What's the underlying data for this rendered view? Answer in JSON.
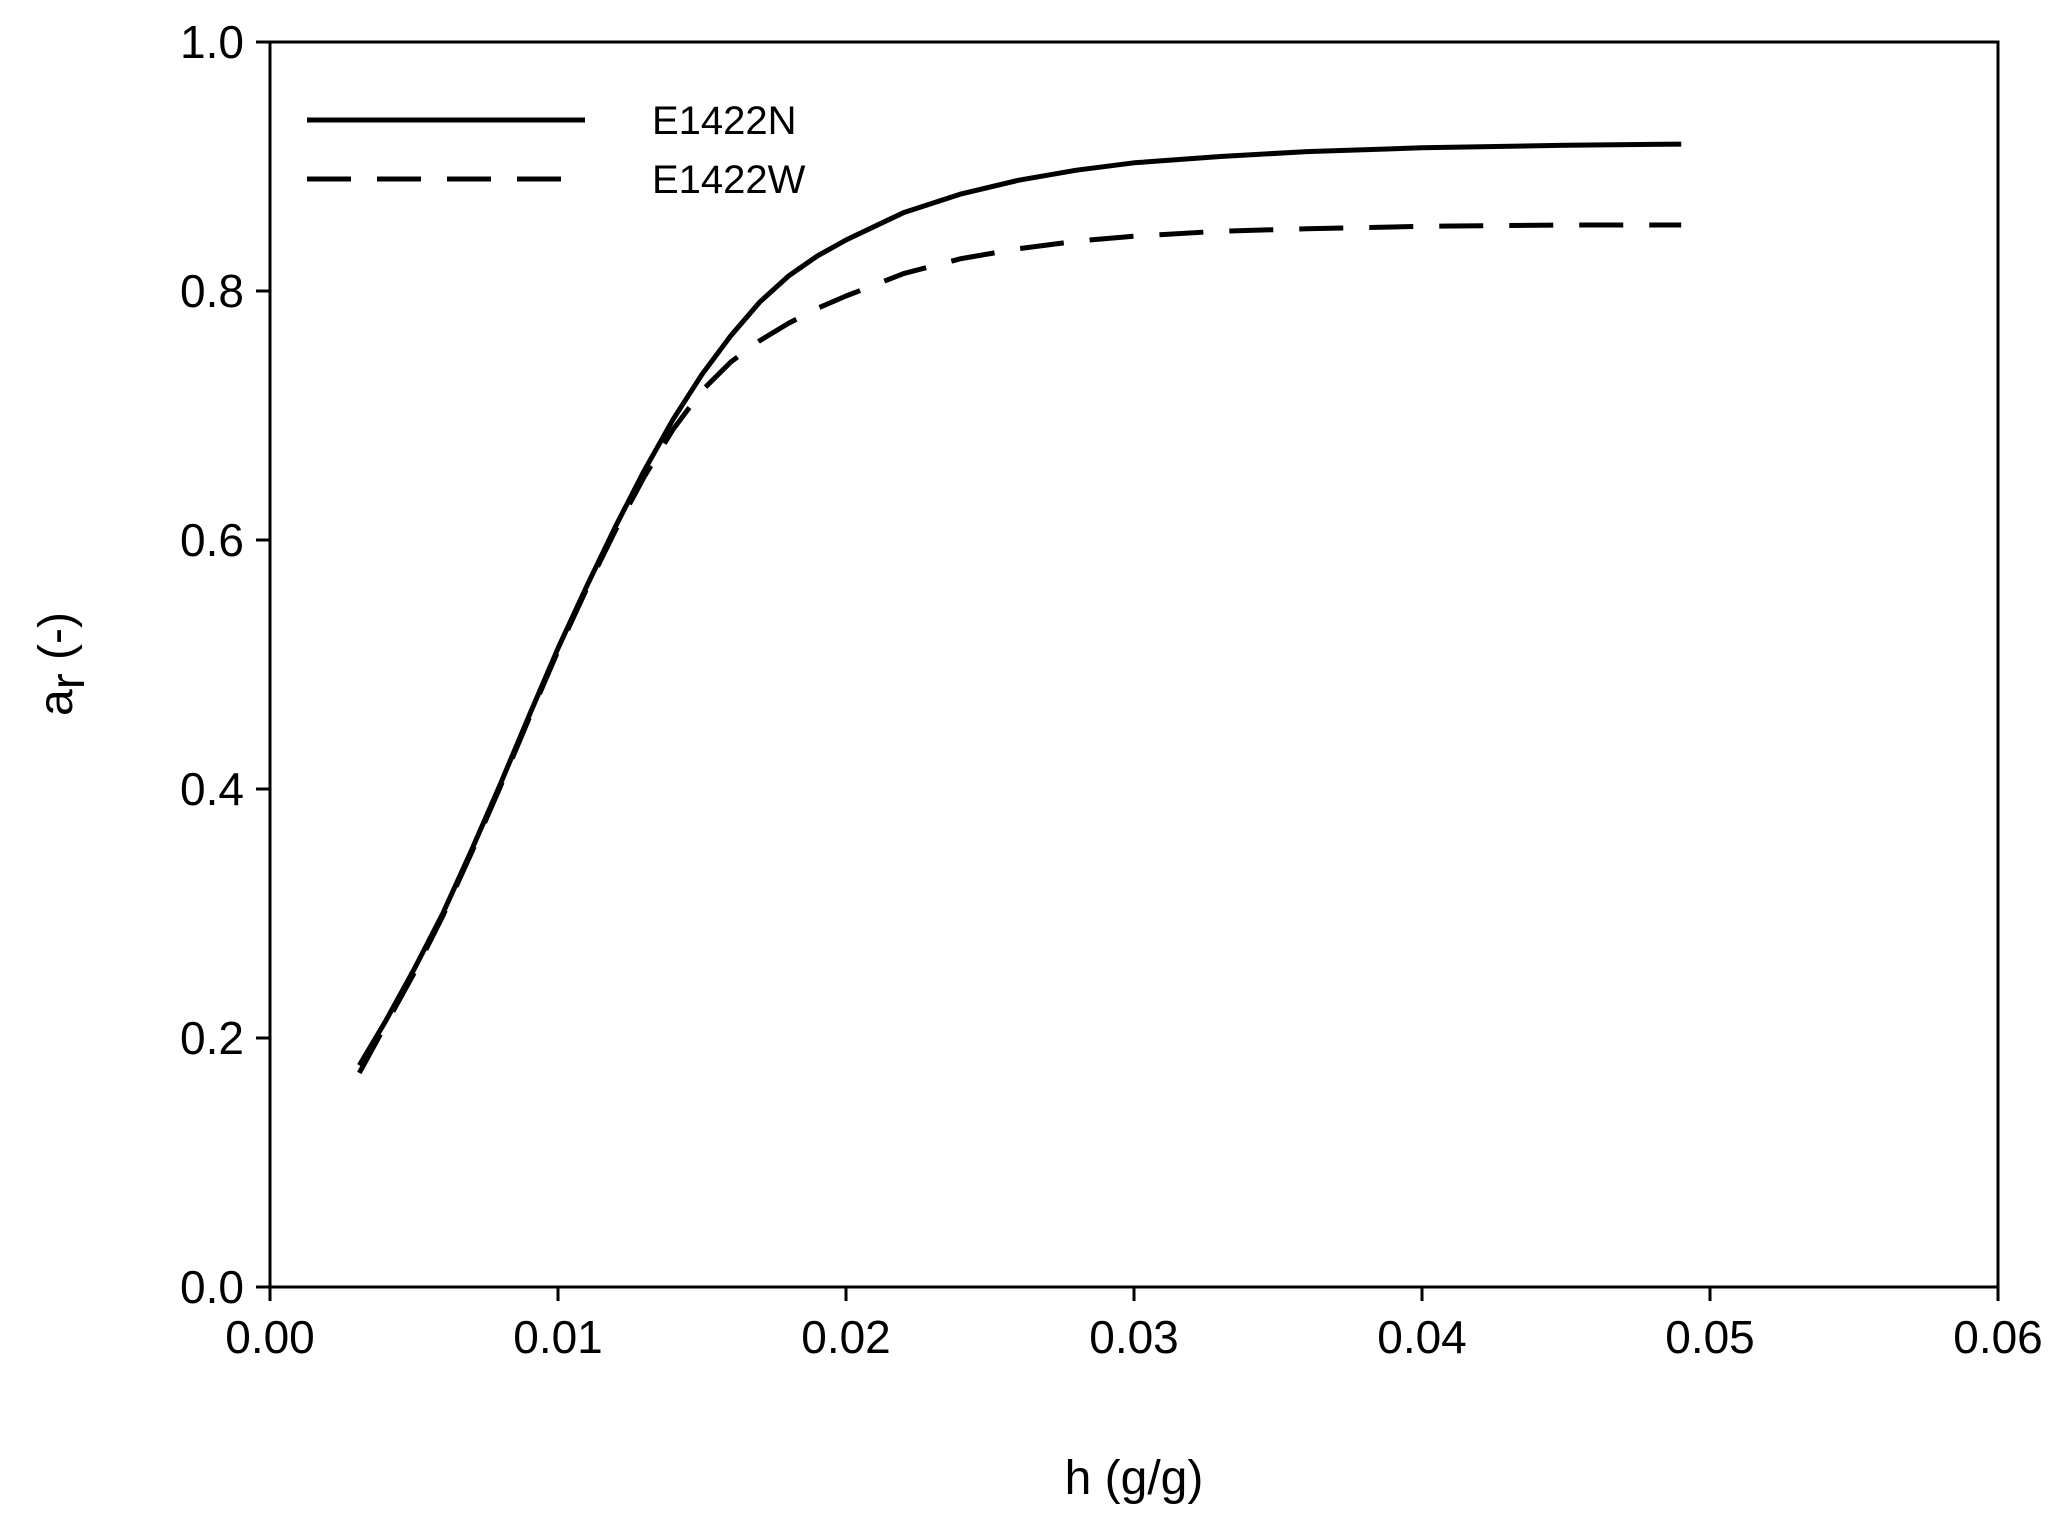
{
  "chart_data": {
    "type": "line",
    "xlabel": "h (g/g)",
    "ylabel_main": "a",
    "ylabel_sub": "r",
    "ylabel_tail": " (-)",
    "xlim": [
      0,
      0.06
    ],
    "ylim": [
      0,
      1.0
    ],
    "xticks": [
      0,
      0.01,
      0.02,
      0.03,
      0.04,
      0.05,
      0.06
    ],
    "xtick_labels": [
      "0.00",
      "0.01",
      "0.02",
      "0.03",
      "0.04",
      "0.05",
      "0.06"
    ],
    "yticks": [
      0,
      0.2,
      0.4,
      0.6,
      0.8,
      1.0
    ],
    "ytick_labels": [
      "0.0",
      "0.2",
      "0.4",
      "0.6",
      "0.8",
      "1.0"
    ],
    "grid": false,
    "legend_position": "top-left",
    "series": [
      {
        "name": "E1422N",
        "style": "solid",
        "color": "#000000",
        "points": [
          [
            0.0031,
            0.178
          ],
          [
            0.004,
            0.213
          ],
          [
            0.005,
            0.255
          ],
          [
            0.006,
            0.3
          ],
          [
            0.007,
            0.351
          ],
          [
            0.008,
            0.404
          ],
          [
            0.009,
            0.459
          ],
          [
            0.01,
            0.513
          ],
          [
            0.011,
            0.563
          ],
          [
            0.012,
            0.611
          ],
          [
            0.013,
            0.656
          ],
          [
            0.014,
            0.697
          ],
          [
            0.015,
            0.733
          ],
          [
            0.016,
            0.764
          ],
          [
            0.017,
            0.791
          ],
          [
            0.018,
            0.812
          ],
          [
            0.019,
            0.828
          ],
          [
            0.02,
            0.841
          ],
          [
            0.022,
            0.863
          ],
          [
            0.024,
            0.878
          ],
          [
            0.026,
            0.889
          ],
          [
            0.028,
            0.897
          ],
          [
            0.03,
            0.903
          ],
          [
            0.033,
            0.908
          ],
          [
            0.036,
            0.912
          ],
          [
            0.04,
            0.915
          ],
          [
            0.045,
            0.917
          ],
          [
            0.049,
            0.918
          ]
        ]
      },
      {
        "name": "E1422W",
        "style": "dashed",
        "color": "#000000",
        "points": [
          [
            0.0031,
            0.172
          ],
          [
            0.004,
            0.21
          ],
          [
            0.005,
            0.252
          ],
          [
            0.006,
            0.298
          ],
          [
            0.007,
            0.349
          ],
          [
            0.008,
            0.402
          ],
          [
            0.009,
            0.457
          ],
          [
            0.01,
            0.511
          ],
          [
            0.011,
            0.561
          ],
          [
            0.012,
            0.608
          ],
          [
            0.013,
            0.651
          ],
          [
            0.014,
            0.689
          ],
          [
            0.015,
            0.72
          ],
          [
            0.016,
            0.743
          ],
          [
            0.017,
            0.76
          ],
          [
            0.018,
            0.774
          ],
          [
            0.019,
            0.786
          ],
          [
            0.02,
            0.796
          ],
          [
            0.022,
            0.814
          ],
          [
            0.024,
            0.826
          ],
          [
            0.026,
            0.834
          ],
          [
            0.028,
            0.84
          ],
          [
            0.03,
            0.844
          ],
          [
            0.033,
            0.848
          ],
          [
            0.036,
            0.85
          ],
          [
            0.04,
            0.852
          ],
          [
            0.045,
            0.853
          ],
          [
            0.049,
            0.853
          ]
        ]
      }
    ]
  }
}
